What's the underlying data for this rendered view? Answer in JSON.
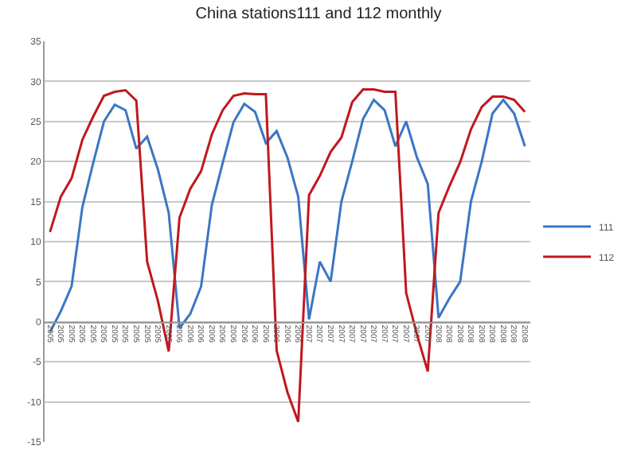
{
  "chart_data": {
    "type": "line",
    "title": "China stations111 and 112 monthly",
    "categories": [
      "2005",
      "2005",
      "2005",
      "2005",
      "2005",
      "2005",
      "2005",
      "2005",
      "2005",
      "2005",
      "2005",
      "2005",
      "2006",
      "2006",
      "2006",
      "2006",
      "2006",
      "2006",
      "2006",
      "2006",
      "2006",
      "2006",
      "2006",
      "2006",
      "2007",
      "2007",
      "2007",
      "2007",
      "2007",
      "2007",
      "2007",
      "2007",
      "2007",
      "2007",
      "2007",
      "2007",
      "2008",
      "2008",
      "2008",
      "2008",
      "2008",
      "2008",
      "2008",
      "2008",
      "2008"
    ],
    "series": [
      {
        "name": "111",
        "color": "#3b76c4",
        "values": [
          -1.3,
          1.3,
          4.4,
          14.3,
          19.8,
          25,
          27.1,
          26.4,
          21.6,
          23.1,
          19,
          13.6,
          -0.8,
          1,
          4.4,
          14.6,
          19.8,
          24.9,
          27.2,
          26.2,
          22.3,
          23.8,
          20.5,
          15.6,
          0.3,
          7.5,
          5,
          15,
          20,
          25.3,
          27.7,
          26.4,
          21.9,
          25,
          20.5,
          17.2,
          0.5,
          2.9,
          5,
          15,
          20,
          26,
          27.7,
          26,
          21.9
        ]
      },
      {
        "name": "112",
        "color": "#c0181e",
        "values": [
          11.2,
          15.6,
          17.9,
          22.7,
          25.6,
          28.2,
          28.7,
          28.9,
          27.6,
          7.5,
          2.6,
          -3.7,
          13,
          16.6,
          18.8,
          23.4,
          26.4,
          28.2,
          28.5,
          28.4,
          28.4,
          -3.6,
          -8.8,
          -12.5,
          15.8,
          18.2,
          21.2,
          23,
          27.4,
          29,
          29,
          28.7,
          28.7,
          3.6,
          -1.6,
          -6.2,
          13.6,
          16.9,
          19.9,
          24,
          26.8,
          28.1,
          28.1,
          27.7,
          26.2
        ]
      }
    ],
    "ylim": [
      -15,
      35
    ],
    "yticks": [
      -15,
      -10,
      -5,
      0,
      5,
      10,
      15,
      20,
      25,
      30,
      35
    ],
    "grid": "y",
    "legend": "right",
    "marker": "none",
    "line_style": "solid"
  }
}
